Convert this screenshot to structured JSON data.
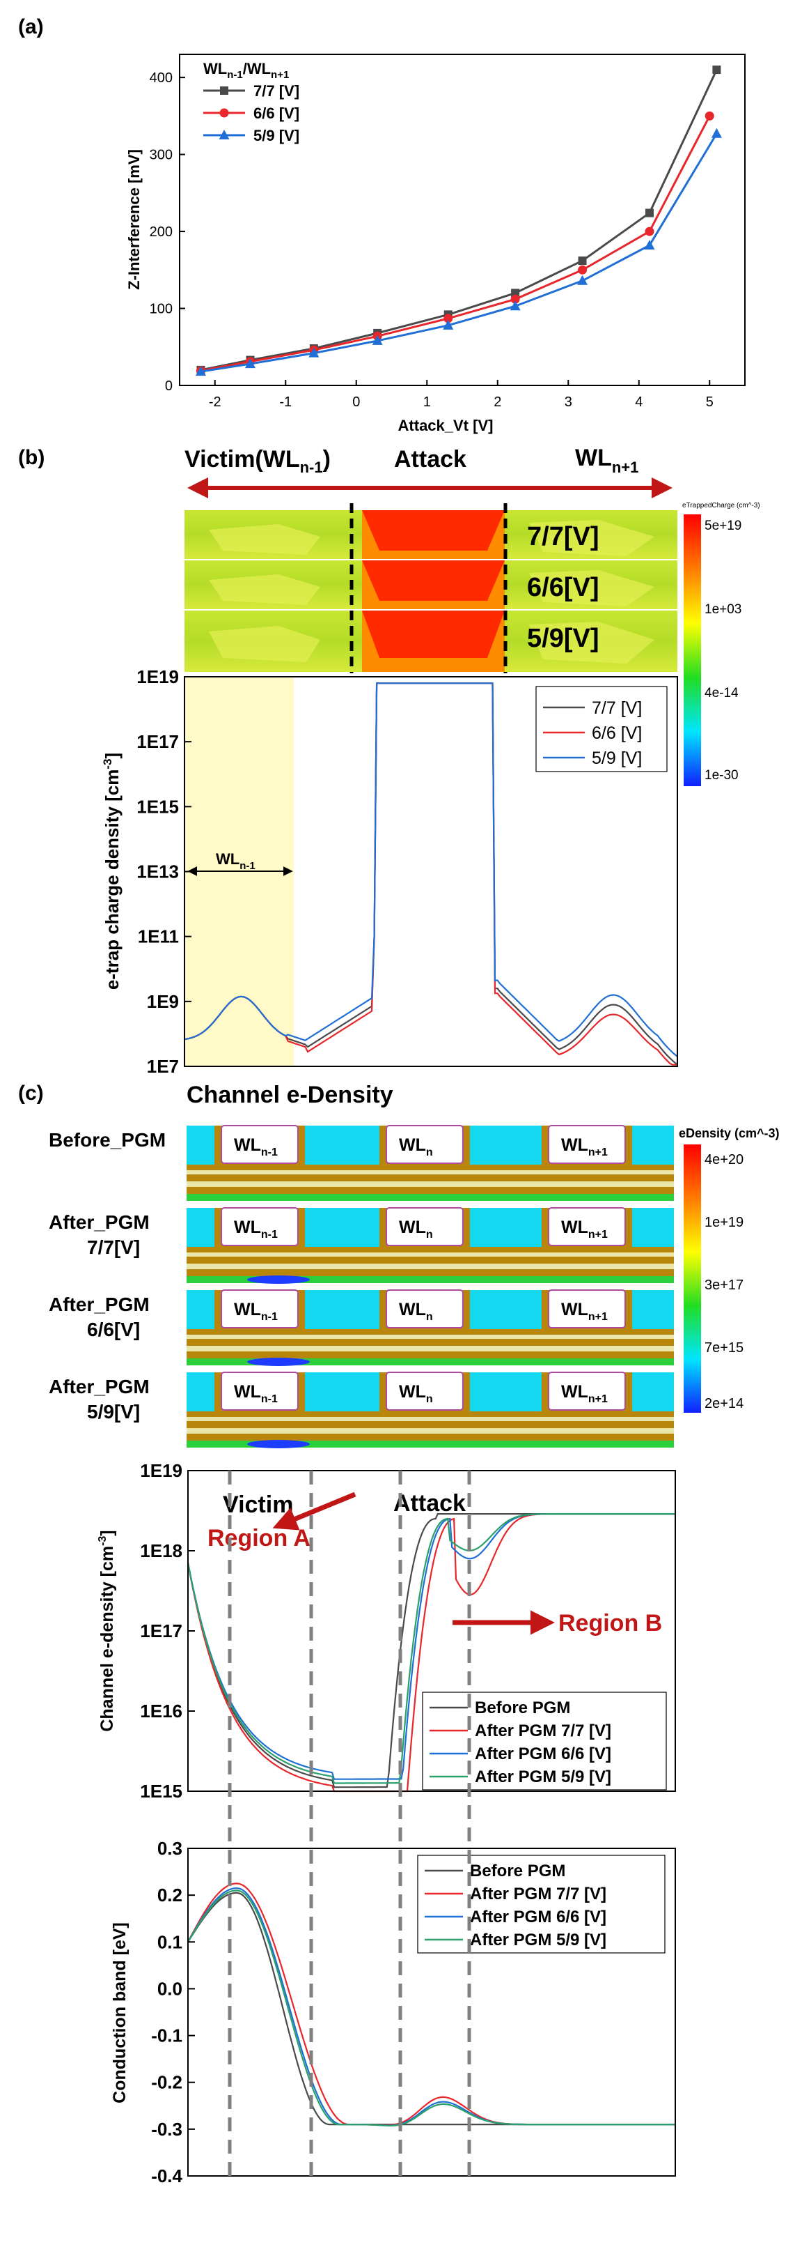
{
  "panels": {
    "a": "(a)",
    "b": "(b)",
    "c": "(c)"
  },
  "colors": {
    "s1": "#4a4a4a",
    "s2": "#e8262b",
    "s3": "#1f6fd6",
    "s4": "#2aa06a",
    "arrow": "#c11616",
    "guide": "#808080",
    "highlight": "#fffac8"
  },
  "panel_a": {
    "legend_title": "WLn-1/WLn+1",
    "chart_data": {
      "type": "line",
      "xlabel": "Attack_Vt [V]",
      "ylabel": "Z-Interference [mV]",
      "xlim": [
        -2.5,
        5.5
      ],
      "ylim": [
        0,
        430
      ],
      "xticks": [
        "-2",
        "-1",
        "0",
        "1",
        "2",
        "3",
        "4",
        "5"
      ],
      "yticks": [
        "0",
        "100",
        "200",
        "300",
        "400"
      ],
      "legend": "top-left",
      "series": [
        {
          "name": "7/7 [V]",
          "marker": "square",
          "x": [
            -2.2,
            -1.5,
            -0.6,
            0.3,
            1.3,
            2.25,
            3.2,
            4.15,
            5.1
          ],
          "y": [
            20,
            33,
            48,
            68,
            92,
            120,
            162,
            224,
            410
          ]
        },
        {
          "name": "6/6 [V]",
          "marker": "circle",
          "x": [
            -2.2,
            -1.5,
            -0.6,
            0.3,
            1.3,
            2.25,
            3.2,
            4.15,
            5.0
          ],
          "y": [
            19,
            31,
            46,
            64,
            87,
            112,
            150,
            200,
            350
          ]
        },
        {
          "name": "5/9 [V]",
          "marker": "triangle",
          "x": [
            -2.2,
            -1.5,
            -0.6,
            0.3,
            1.3,
            2.25,
            3.2,
            4.15,
            5.1
          ],
          "y": [
            18,
            28,
            42,
            58,
            78,
            103,
            136,
            182,
            327
          ]
        }
      ]
    }
  },
  "panel_b": {
    "arrow_labels": {
      "victim": "Victim(WL",
      "victim_sub": "n-1",
      "victim_close": ")",
      "attack": "Attack",
      "wl": "WL",
      "wl_sub": "n+1"
    },
    "map_labels": [
      "7/7[V]",
      "6/6[V]",
      "5/9[V]"
    ],
    "colorbar": {
      "title": "eTrappedCharge (cm^-3)",
      "ticks": [
        "5e+19",
        "1e+03",
        "4e-14",
        "1e-30"
      ]
    },
    "region": {
      "label": "WL",
      "sub": "n-1"
    },
    "chart_data": {
      "type": "line",
      "ylabel": "e-trap charge density [cm-3]",
      "yscale": "log",
      "ylim": [
        "1E7",
        "1E19"
      ],
      "yticks": [
        "1E19",
        "1E17",
        "1E15",
        "1E13",
        "1E11",
        "1E9",
        "1E7"
      ],
      "legend": "top-right",
      "series": [
        {
          "name": "7/7 [V]"
        },
        {
          "name": "6/6 [V]"
        },
        {
          "name": "5/9 [V]"
        }
      ]
    }
  },
  "panel_c": {
    "title": "Channel e-Density",
    "rows": [
      {
        "l1": "Before_PGM",
        "l2": ""
      },
      {
        "l1": "After_PGM",
        "l2": "7/7[V]"
      },
      {
        "l1": "After_PGM",
        "l2": "6/6[V]"
      },
      {
        "l1": "After_PGM",
        "l2": "5/9[V]"
      }
    ],
    "gates": [
      {
        "t": "WL",
        "s": "n-1"
      },
      {
        "t": "WL",
        "s": "n"
      },
      {
        "t": "WL",
        "s": "n+1"
      }
    ],
    "colorbar": {
      "title": "eDensity (cm^-3)",
      "ticks": [
        "4e+20",
        "1e+19",
        "3e+17",
        "7e+15",
        "2e+14"
      ]
    },
    "annotations": {
      "victim": "Victim",
      "attack": "Attack",
      "region_a": "Region A",
      "region_b": "Region B"
    },
    "density_chart": {
      "type": "line",
      "ylabel": "Channel e-density [cm-3]",
      "yscale": "log",
      "ylim": [
        "1E15",
        "1E19"
      ],
      "yticks": [
        "1E19",
        "1E18",
        "1E17",
        "1E16",
        "1E15"
      ],
      "legend": "bottom-right",
      "series": [
        {
          "name": "Before PGM"
        },
        {
          "name": "After PGM 7/7 [V]"
        },
        {
          "name": "After PGM 6/6 [V]"
        },
        {
          "name": "After PGM 5/9 [V]"
        }
      ]
    },
    "band_chart": {
      "type": "line",
      "ylabel": "Conduction band [eV]",
      "ylim": [
        -0.4,
        0.3
      ],
      "yticks": [
        "0.3",
        "0.2",
        "0.1",
        "0.0",
        "-0.1",
        "-0.2",
        "-0.3",
        "-0.4"
      ],
      "legend": "top-right",
      "series": [
        {
          "name": "Before PGM"
        },
        {
          "name": "After PGM 7/7 [V]"
        },
        {
          "name": "After PGM 6/6 [V]"
        },
        {
          "name": "After PGM 5/9 [V]"
        }
      ]
    }
  }
}
